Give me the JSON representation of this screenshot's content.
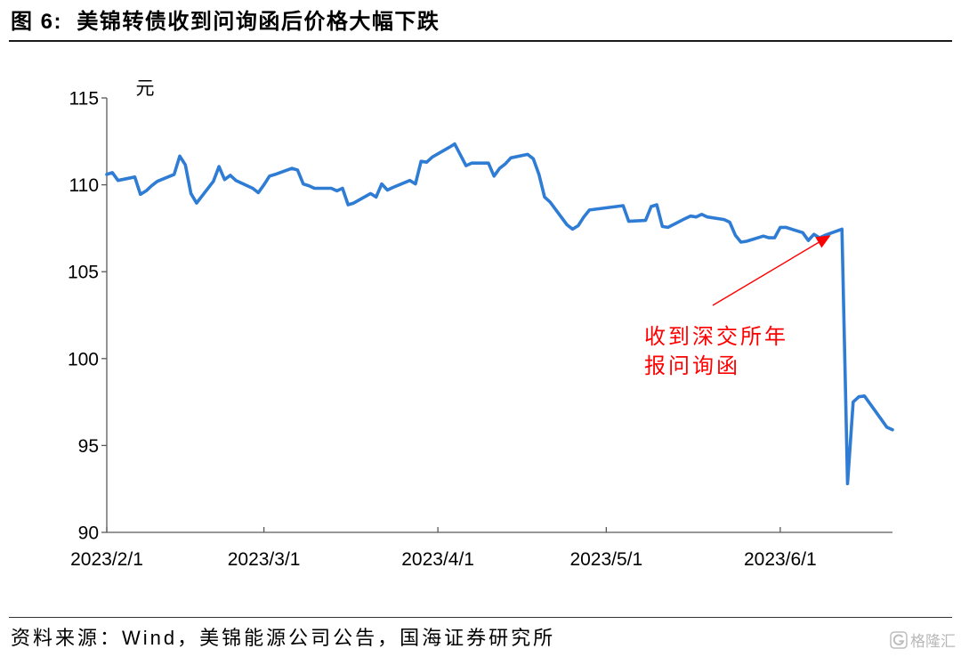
{
  "source": "资料来源：Wind，美锦能源公司公告，国海证券研究所",
  "watermark": {
    "text": "格隆汇",
    "icon": "gelonghui-g-icon",
    "color": "#b8b8b8"
  },
  "chart_data": {
    "type": "line",
    "title": "图 6:  美锦转债收到问询函后价格大幅下跌",
    "ylabel": "元",
    "ylim": [
      90,
      115
    ],
    "y_ticks": [
      90,
      95,
      100,
      105,
      110,
      115
    ],
    "xlim": [
      "2023/2/1",
      "2023/6/21"
    ],
    "x_tick_labels": [
      "2023/2/1",
      "2023/3/1",
      "2023/4/1",
      "2023/5/1",
      "2023/6/1"
    ],
    "grid": false,
    "legend": "none",
    "series": [
      {
        "color": "#2E7CD4",
        "points": [
          [
            "2023/2/1",
            110.6
          ],
          [
            "2023/2/2",
            110.7
          ],
          [
            "2023/2/3",
            110.25
          ],
          [
            "2023/2/6",
            110.45
          ],
          [
            "2023/2/7",
            109.45
          ],
          [
            "2023/2/8",
            109.65
          ],
          [
            "2023/2/9",
            109.95
          ],
          [
            "2023/2/10",
            110.2
          ],
          [
            "2023/2/13",
            110.6
          ],
          [
            "2023/2/14",
            111.65
          ],
          [
            "2023/2/15",
            111.15
          ],
          [
            "2023/2/16",
            109.5
          ],
          [
            "2023/2/17",
            108.95
          ],
          [
            "2023/2/20",
            110.2
          ],
          [
            "2023/2/21",
            111.05
          ],
          [
            "2023/2/22",
            110.3
          ],
          [
            "2023/2/23",
            110.55
          ],
          [
            "2023/2/24",
            110.25
          ],
          [
            "2023/2/27",
            109.8
          ],
          [
            "2023/2/28",
            109.55
          ],
          [
            "2023/3/1",
            110.0
          ],
          [
            "2023/3/2",
            110.5
          ],
          [
            "2023/3/3",
            110.6
          ],
          [
            "2023/3/6",
            110.95
          ],
          [
            "2023/3/7",
            110.85
          ],
          [
            "2023/3/8",
            110.05
          ],
          [
            "2023/3/9",
            109.95
          ],
          [
            "2023/3/10",
            109.8
          ],
          [
            "2023/3/13",
            109.8
          ],
          [
            "2023/3/14",
            109.65
          ],
          [
            "2023/3/15",
            109.8
          ],
          [
            "2023/3/16",
            108.85
          ],
          [
            "2023/3/17",
            108.95
          ],
          [
            "2023/3/20",
            109.5
          ],
          [
            "2023/3/21",
            109.3
          ],
          [
            "2023/3/22",
            110.05
          ],
          [
            "2023/3/23",
            109.7
          ],
          [
            "2023/3/24",
            109.85
          ],
          [
            "2023/3/27",
            110.25
          ],
          [
            "2023/3/28",
            110.05
          ],
          [
            "2023/3/29",
            111.35
          ],
          [
            "2023/3/30",
            111.3
          ],
          [
            "2023/3/31",
            111.6
          ],
          [
            "2023/4/3",
            112.15
          ],
          [
            "2023/4/4",
            112.35
          ],
          [
            "2023/4/6",
            111.1
          ],
          [
            "2023/4/7",
            111.25
          ],
          [
            "2023/4/10",
            111.25
          ],
          [
            "2023/4/11",
            110.5
          ],
          [
            "2023/4/12",
            110.95
          ],
          [
            "2023/4/13",
            111.2
          ],
          [
            "2023/4/14",
            111.55
          ],
          [
            "2023/4/17",
            111.75
          ],
          [
            "2023/4/18",
            111.5
          ],
          [
            "2023/4/19",
            110.6
          ],
          [
            "2023/4/20",
            109.3
          ],
          [
            "2023/4/21",
            109.0
          ],
          [
            "2023/4/24",
            107.7
          ],
          [
            "2023/4/25",
            107.45
          ],
          [
            "2023/4/26",
            107.65
          ],
          [
            "2023/4/27",
            108.15
          ],
          [
            "2023/4/28",
            108.55
          ],
          [
            "2023/5/4",
            108.8
          ],
          [
            "2023/5/5",
            107.9
          ],
          [
            "2023/5/8",
            107.95
          ],
          [
            "2023/5/9",
            108.75
          ],
          [
            "2023/5/10",
            108.85
          ],
          [
            "2023/5/11",
            107.6
          ],
          [
            "2023/5/12",
            107.55
          ],
          [
            "2023/5/15",
            108.05
          ],
          [
            "2023/5/16",
            108.2
          ],
          [
            "2023/5/17",
            108.15
          ],
          [
            "2023/5/18",
            108.3
          ],
          [
            "2023/5/19",
            108.15
          ],
          [
            "2023/5/22",
            108.0
          ],
          [
            "2023/5/23",
            107.85
          ],
          [
            "2023/5/24",
            107.1
          ],
          [
            "2023/5/25",
            106.7
          ],
          [
            "2023/5/26",
            106.75
          ],
          [
            "2023/5/29",
            107.05
          ],
          [
            "2023/5/30",
            106.95
          ],
          [
            "2023/5/31",
            106.95
          ],
          [
            "2023/6/1",
            107.55
          ],
          [
            "2023/6/2",
            107.55
          ],
          [
            "2023/6/5",
            107.25
          ],
          [
            "2023/6/6",
            106.8
          ],
          [
            "2023/6/7",
            107.15
          ],
          [
            "2023/6/8",
            106.95
          ],
          [
            "2023/6/9",
            107.1
          ],
          [
            "2023/6/12",
            107.45
          ],
          [
            "2023/6/13",
            92.8
          ],
          [
            "2023/6/14",
            97.5
          ],
          [
            "2023/6/15",
            97.8
          ],
          [
            "2023/6/16",
            97.85
          ],
          [
            "2023/6/19",
            96.5
          ],
          [
            "2023/6/20",
            96.05
          ],
          [
            "2023/6/21",
            95.9
          ]
        ]
      }
    ],
    "annotations": [
      {
        "text_lines": [
          "收到深交所年",
          "报问询函"
        ],
        "x": "2023/6/10",
        "y": 107.1,
        "color": "#FF0000"
      }
    ]
  }
}
